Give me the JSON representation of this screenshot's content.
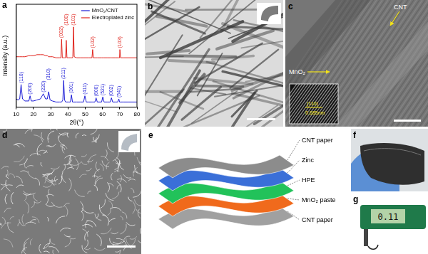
{
  "chart_data": {
    "type": "line",
    "panel_label": "a",
    "x_label": "2θ(°)",
    "y_label": "Intensity (a.u.)",
    "x": [
      10,
      11,
      12,
      12.8,
      13.6,
      15,
      17.3,
      18,
      18.7,
      20,
      22,
      24,
      25.7,
      27,
      28,
      28.8,
      29.6,
      31,
      33,
      35,
      35.9,
      36.3,
      36.7,
      37,
      37.5,
      38,
      38.6,
      39,
      39.4,
      40.5,
      41.4,
      42,
      42.6,
      42.8,
      43.2,
      43.6,
      45,
      47,
      49,
      49.8,
      50.6,
      52,
      53.9,
      54.3,
      54.7,
      55.6,
      56.3,
      57,
      59.5,
      60.2,
      60.9,
      63,
      64.5,
      65.2,
      65.9,
      67.5,
      68.8,
      69.5,
      69.9,
      70.1,
      70.5,
      72,
      75,
      80
    ],
    "series": [
      {
        "name": "MnO₂/CNT",
        "color": "#1c1cd6",
        "values": [
          8,
          7,
          8,
          22,
          8,
          6,
          6,
          11,
          6,
          6,
          7,
          8,
          13,
          8,
          8,
          15,
          7,
          6,
          5,
          5,
          5,
          5,
          6,
          7,
          26,
          7,
          5,
          5,
          5,
          5,
          5,
          12,
          5,
          5,
          5,
          5,
          5,
          5,
          5,
          11,
          5,
          5,
          5,
          5,
          5,
          5,
          9,
          5,
          5,
          10,
          5,
          5,
          5,
          9,
          5,
          5,
          5,
          8,
          5,
          5,
          5,
          5,
          5,
          5
        ],
        "peak_labels": [
          {
            "x": 12.8,
            "text": "(110)"
          },
          {
            "x": 18,
            "text": "(200)"
          },
          {
            "x": 25.7,
            "text": "(220)"
          },
          {
            "x": 28.8,
            "text": "(310)"
          },
          {
            "x": 37.5,
            "text": "(211)"
          },
          {
            "x": 42,
            "text": "(301)"
          },
          {
            "x": 49.8,
            "text": "(411)"
          },
          {
            "x": 56.3,
            "text": "(600)"
          },
          {
            "x": 60.2,
            "text": "(521)"
          },
          {
            "x": 65.2,
            "text": "(002)"
          },
          {
            "x": 69.5,
            "text": "(541)"
          }
        ]
      },
      {
        "name": "Electroplated zinc",
        "color": "#e0231c",
        "values": [
          49,
          49,
          49,
          49,
          49,
          49,
          50,
          50,
          50,
          50,
          51,
          51,
          51,
          50,
          50,
          49,
          49,
          49,
          48,
          48,
          48,
          66,
          48,
          48,
          48,
          48,
          48,
          65,
          48,
          48,
          48,
          48,
          48,
          49,
          78,
          49,
          48,
          48,
          48,
          48,
          48,
          48,
          48,
          56,
          48,
          48,
          48,
          48,
          48,
          48,
          48,
          48,
          48,
          48,
          48,
          48,
          48,
          48,
          48,
          56,
          48,
          48,
          48,
          48
        ],
        "peak_labels": [
          {
            "x": 36.3,
            "text": "(002)"
          },
          {
            "x": 39,
            "text": "(100)"
          },
          {
            "x": 43.2,
            "text": "(101)"
          },
          {
            "x": 54.3,
            "text": "(102)"
          },
          {
            "x": 70.1,
            "text": "(103)"
          }
        ]
      }
    ],
    "xlim": [
      10,
      80
    ],
    "xticks": [
      10,
      20,
      30,
      40,
      50,
      60,
      70,
      80
    ],
    "ylim": [
      0,
      100
    ],
    "tick_labels": "x",
    "grid": false,
    "legend": "upper right"
  },
  "panels": {
    "b": {
      "label": "b"
    },
    "c": {
      "label": "c",
      "arrows": [
        "CNT",
        "MnO₂"
      ],
      "inset_lines": [
        "(110)",
        "0.685nm"
      ]
    },
    "d": {
      "label": "d"
    },
    "e": {
      "label": "e",
      "layers": [
        "CNT paper",
        "Zinc",
        "HPE",
        "MnO₂ paste",
        "CNT paper"
      ]
    },
    "f": {
      "label": "f"
    },
    "g": {
      "label": "g",
      "display": "0.11"
    }
  }
}
